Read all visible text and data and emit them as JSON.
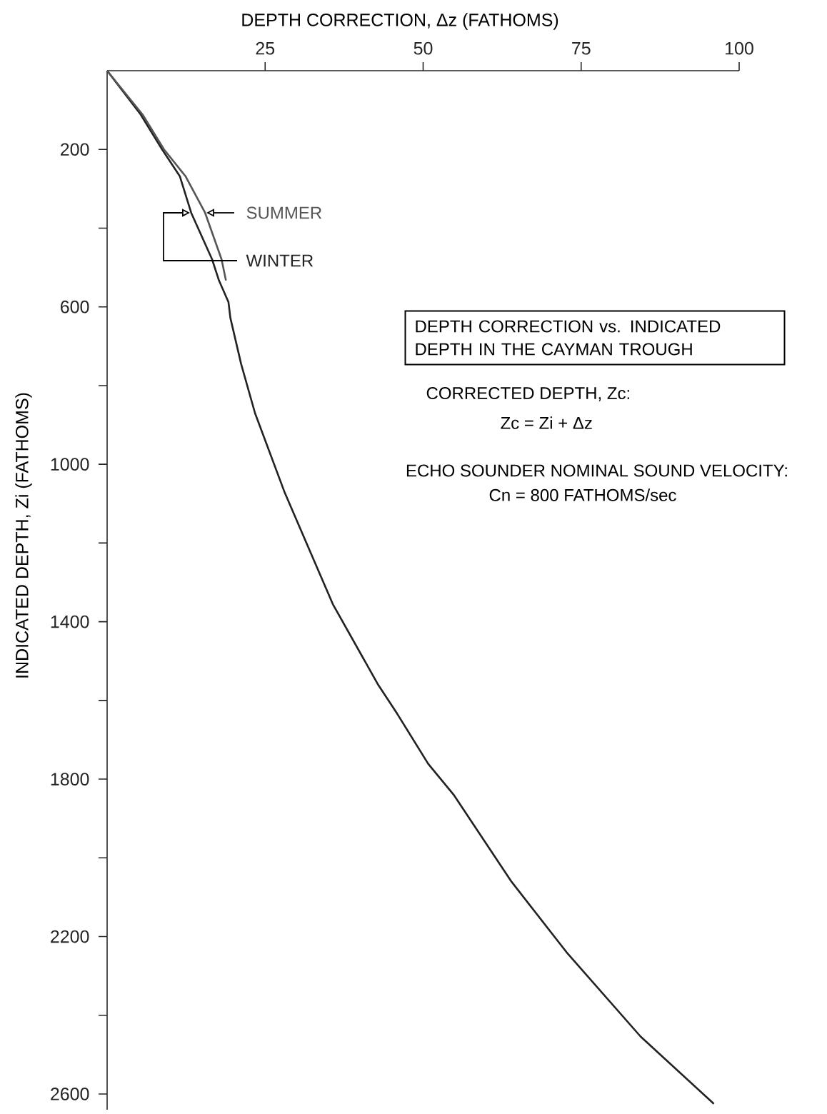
{
  "chart_data": {
    "type": "line",
    "title": "DEPTH CORRECTION vs. INDICATED DEPTH IN THE CAYMAN TROUGH",
    "xlabel": "DEPTH CORRECTION, Δz (FATHOMS)",
    "ylabel": "INDICATED DEPTH, Zi (FATHOMS)",
    "annotations": [
      "CORRECTED DEPTH, Zc:",
      "Zc = Zi + Δz",
      "ECHO SOUNDER NOMINAL SOUND VELOCITY:",
      "Cn = 800 FATHOMS/sec"
    ],
    "series": [
      {
        "name": "WINTER",
        "color": "#222222",
        "x": [
          0,
          5.3,
          8.7,
          11.5,
          13.3,
          16.6,
          17.7,
          19.2,
          19.5,
          21.2,
          23.4,
          28.1,
          35.7,
          42.8,
          45.9,
          50.8,
          54.8,
          64.0,
          72.7,
          84.4,
          96
        ],
        "values": [
          0,
          111,
          200,
          268,
          361,
          479,
          533,
          588,
          628,
          745,
          870,
          1072,
          1355,
          1558,
          1634,
          1761,
          1839,
          2061,
          2240,
          2454,
          2625
        ]
      },
      {
        "name": "SUMMER",
        "color": "#555555",
        "x": [
          0,
          5.6,
          9.0,
          12.4,
          15.5,
          18.1,
          18.8
        ],
        "values": [
          0,
          111,
          200,
          268,
          361,
          479,
          533
        ]
      }
    ],
    "xlim": [
      0,
      100
    ],
    "xticks": [
      25,
      50,
      75,
      100
    ],
    "ylim": [
      2640,
      0
    ],
    "yticks": [
      200,
      {
        "value": 400,
        "label": null
      },
      600,
      {
        "value": 800,
        "label": null
      },
      1000,
      {
        "value": 1200,
        "label": null
      },
      1400,
      {
        "value": 1600,
        "label": null
      },
      1800,
      {
        "value": 2000,
        "label": null
      },
      2200,
      {
        "value": 2400,
        "label": null
      },
      2600
    ],
    "marker": "none",
    "line_style": "solid",
    "legend": false,
    "grid": false
  }
}
